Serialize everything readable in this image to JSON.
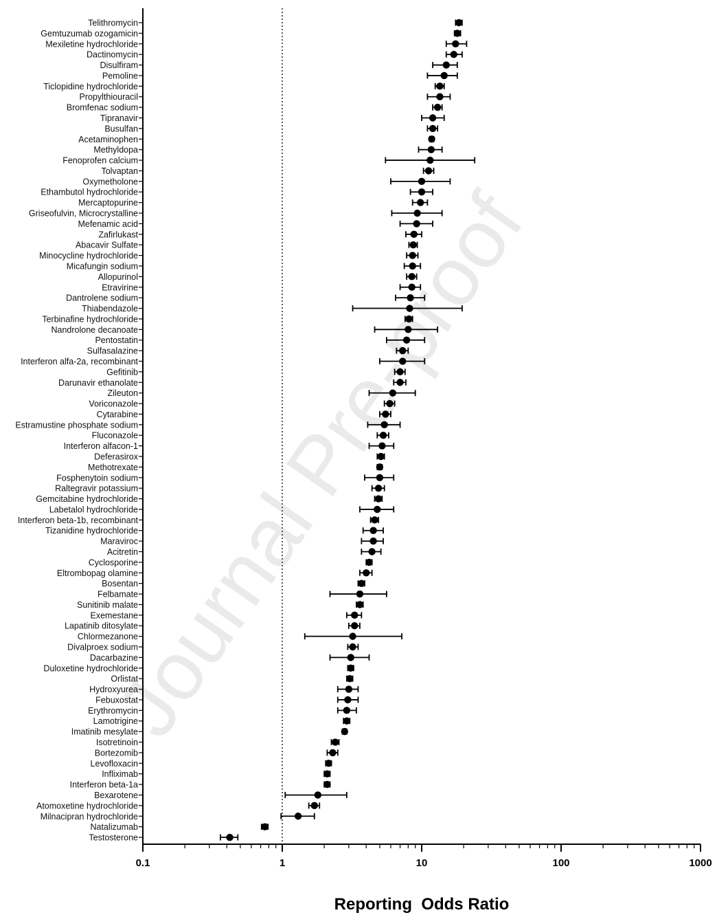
{
  "chart_data": {
    "type": "forest",
    "xlabel": "Reporting  Odds Ratio",
    "xscale": "log",
    "xlim": [
      0.1,
      1000
    ],
    "x_ticks": [
      0.1,
      1,
      10,
      100,
      1000
    ],
    "x_tick_labels": [
      "0.1",
      "1",
      "10",
      "100",
      "1000"
    ],
    "reference_line": 1,
    "reference_line_style": "dotted",
    "watermark": "Journal Pre-proof",
    "categories": [
      "Telithromycin",
      "Gemtuzumab ozogamicin",
      "Mexiletine hydrochloride",
      "Dactinomycin",
      "Disulfiram",
      "Pemoline",
      "Ticlopidine hydrochloride",
      "Propylthiouracil",
      "Bromfenac sodium",
      "Tipranavir",
      "Busulfan",
      "Acetaminophen",
      "Methyldopa",
      "Fenoprofen calcium",
      "Tolvaptan",
      "Oxymetholone",
      "Ethambutol hydrochloride",
      "Mercaptopurine",
      "Griseofulvin, Microcrystalline",
      "Mefenamic acid",
      "Zafirlukast",
      "Abacavir Sulfate",
      "Minocycline hydrochloride",
      "Micafungin sodium",
      "Allopurinol",
      "Etravirine",
      "Dantrolene sodium",
      "Thiabendazole",
      "Terbinafine hydrochloride",
      "Nandrolone decanoate",
      "Pentostatin",
      "Sulfasalazine",
      "Interferon alfa-2a, recombinant",
      "Gefitinib",
      "Darunavir ethanolate",
      "Zileuton",
      "Voriconazole",
      "Cytarabine",
      "Estramustine phosphate sodium",
      "Fluconazole",
      "Interferon alfacon-1",
      "Deferasirox",
      "Methotrexate",
      "Fosphenytoin sodium",
      "Raltegravir potassium",
      "Gemcitabine hydrochloride",
      "Labetalol hydrochloride",
      "Interferon beta-1b, recombinant",
      "Tizanidine hydrochloride",
      "Maraviroc",
      "Acitretin",
      "Cyclosporine",
      "Eltrombopag olamine",
      "Bosentan",
      "Felbamate",
      "Sunitinib malate",
      "Exemestane",
      "Lapatinib ditosylate",
      "Chlormezanone",
      "Divalproex sodium",
      "Dacarbazine",
      "Duloxetine hydrochloride",
      "Orlistat",
      "Hydroxyurea",
      "Febuxostat",
      "Erythromycin",
      "Lamotrigine",
      "Imatinib mesylate",
      "Isotretinoin",
      "Bortezomib",
      "Levofloxacin",
      "Infliximab",
      "Interferon beta-1a",
      "Bexarotene",
      "Atomoxetine hydrochloride",
      "Milnacipran hydrochloride",
      "Natalizumab",
      "Testosterone"
    ],
    "estimate": [
      18.5,
      18.0,
      17.5,
      17.0,
      15.0,
      14.5,
      13.5,
      13.5,
      13.0,
      12.0,
      12.0,
      11.8,
      11.7,
      11.5,
      11.2,
      10.0,
      10.0,
      9.8,
      9.3,
      9.2,
      8.8,
      8.7,
      8.6,
      8.6,
      8.5,
      8.5,
      8.3,
      8.2,
      8.1,
      8.0,
      7.8,
      7.3,
      7.3,
      7.0,
      7.0,
      6.2,
      5.9,
      5.5,
      5.4,
      5.3,
      5.2,
      5.1,
      5.0,
      5.0,
      4.9,
      4.9,
      4.8,
      4.6,
      4.5,
      4.5,
      4.4,
      4.2,
      4.0,
      3.7,
      3.6,
      3.6,
      3.3,
      3.3,
      3.2,
      3.2,
      3.1,
      3.1,
      3.05,
      3.0,
      2.95,
      2.9,
      2.9,
      2.8,
      2.4,
      2.3,
      2.15,
      2.1,
      2.1,
      1.8,
      1.7,
      1.3,
      0.75,
      0.42
    ],
    "ci_lower": [
      17.5,
      17.2,
      15.0,
      15.0,
      12.0,
      11.0,
      12.5,
      11.0,
      12.0,
      10.0,
      11.0,
      11.4,
      9.5,
      5.5,
      10.3,
      6.0,
      8.3,
      8.6,
      6.1,
      7.0,
      7.7,
      8.1,
      7.8,
      7.5,
      7.8,
      7.0,
      6.5,
      3.2,
      7.6,
      4.6,
      5.6,
      6.6,
      5.0,
      6.4,
      6.3,
      4.2,
      5.4,
      5.0,
      4.1,
      4.8,
      4.2,
      4.8,
      4.8,
      3.9,
      4.4,
      4.6,
      3.6,
      4.3,
      3.8,
      3.7,
      3.7,
      4.0,
      3.6,
      3.5,
      2.2,
      3.4,
      2.9,
      3.0,
      1.45,
      2.95,
      2.2,
      2.95,
      2.9,
      2.5,
      2.5,
      2.5,
      2.75,
      2.7,
      2.25,
      2.1,
      2.05,
      2.0,
      2.0,
      1.05,
      1.55,
      0.98,
      0.71,
      0.36
    ],
    "ci_upper": [
      19.5,
      19.0,
      21.0,
      19.5,
      18.0,
      18.0,
      14.5,
      16.0,
      14.0,
      14.5,
      13.0,
      12.2,
      14.0,
      24.0,
      12.2,
      16.0,
      12.0,
      11.0,
      14.0,
      12.0,
      10.0,
      9.3,
      9.4,
      9.8,
      9.2,
      9.8,
      10.5,
      19.5,
      8.6,
      13.0,
      10.5,
      8.0,
      10.5,
      7.6,
      7.7,
      9.0,
      6.4,
      6.0,
      7.0,
      5.8,
      6.3,
      5.4,
      5.2,
      6.3,
      5.4,
      5.2,
      6.3,
      4.9,
      5.3,
      5.3,
      5.1,
      4.4,
      4.4,
      3.9,
      5.6,
      3.8,
      3.7,
      3.6,
      7.2,
      3.5,
      4.2,
      3.25,
      3.2,
      3.5,
      3.5,
      3.4,
      3.05,
      2.9,
      2.55,
      2.5,
      2.25,
      2.2,
      2.2,
      2.9,
      1.85,
      1.7,
      0.79,
      0.48
    ]
  }
}
